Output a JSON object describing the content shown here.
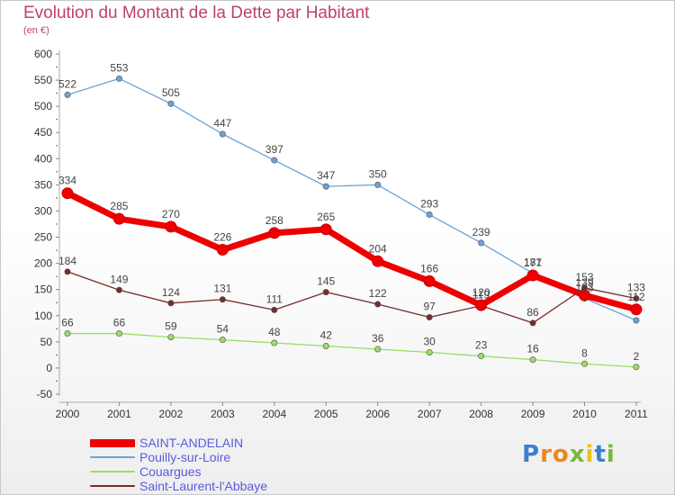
{
  "title": "Evolution du Montant de la Dette par Habitant",
  "unit": "(en €)",
  "logo": {
    "letters": [
      "P",
      "r",
      "o",
      "x",
      "i",
      "t",
      "i"
    ],
    "colors": [
      "#3b7fd0",
      "#e88a1a",
      "#e88a1a",
      "#7ab83a",
      "#e8c21a",
      "#3b7fd0",
      "#7ab83a"
    ]
  },
  "chart_data": {
    "type": "line",
    "x": [
      "2000",
      "2001",
      "2002",
      "2003",
      "2004",
      "2005",
      "2006",
      "2007",
      "2008",
      "2009",
      "2010",
      "2011"
    ],
    "ylim": [
      -50,
      600
    ],
    "yticks": [
      -50,
      0,
      50,
      100,
      150,
      200,
      250,
      300,
      350,
      400,
      450,
      500,
      550,
      600
    ],
    "grid": false,
    "legend_position": "bottom-left",
    "series": [
      {
        "name": "SAINT-ANDELAIN",
        "color": "#ee0000",
        "values": [
          334,
          285,
          270,
          226,
          258,
          265,
          204,
          166,
          120,
          177,
          139,
          112
        ],
        "labels": [
          "334",
          "285",
          "270",
          "226",
          "258",
          "265",
          "204",
          "166",
          "120",
          "177",
          "139",
          "112"
        ]
      },
      {
        "name": "Pouilly-sur-Loire",
        "color": "#6ba3d6",
        "values": [
          522,
          553,
          505,
          447,
          397,
          347,
          350,
          293,
          239,
          181,
          133,
          91
        ],
        "labels": [
          "522",
          "553",
          "505",
          "447",
          "397",
          "347",
          "350",
          "293",
          "239",
          "181",
          "133",
          ""
        ]
      },
      {
        "name": "Couargues",
        "color": "#99dd66",
        "values": [
          66,
          66,
          59,
          54,
          48,
          42,
          36,
          30,
          23,
          16,
          8,
          2
        ],
        "labels": [
          "66",
          "66",
          "59",
          "54",
          "48",
          "42",
          "36",
          "30",
          "23",
          "16",
          "8",
          "2"
        ]
      },
      {
        "name": "Saint-Laurent-l'Abbaye",
        "color": "#7a2a2a",
        "values": [
          184,
          149,
          124,
          131,
          111,
          145,
          122,
          97,
          119,
          86,
          153,
          133
        ],
        "labels": [
          "184",
          "149",
          "124",
          "131",
          "111",
          "145",
          "122",
          "97",
          "119",
          "86",
          "153",
          "133"
        ]
      }
    ]
  }
}
